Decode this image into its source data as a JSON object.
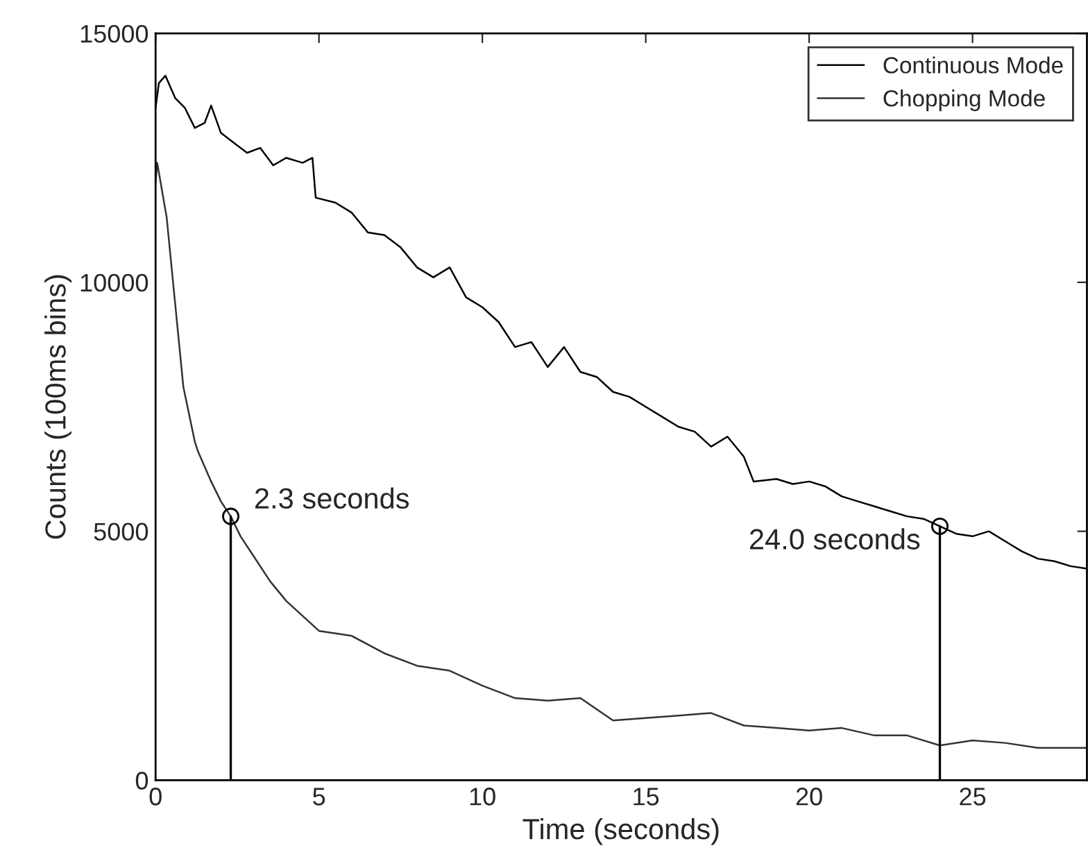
{
  "chart_data": {
    "type": "line",
    "xlabel": "Time (seconds)",
    "ylabel": "Counts (100ms bins)",
    "xlim": [
      0,
      28.5
    ],
    "xticks": [
      0,
      5,
      10,
      15,
      20,
      25
    ],
    "ylim": [
      0,
      15000
    ],
    "yticks": [
      0,
      5000,
      10000,
      15000
    ],
    "grid": false,
    "legend": "top right",
    "line_style": "solid",
    "marker": "none",
    "series": [
      {
        "name": "Continuous Mode",
        "color": "#000000",
        "x": [
          0,
          0.1,
          0.3,
          0.6,
          0.9,
          1.2,
          1.5,
          1.7,
          2.0,
          2.4,
          2.8,
          3.2,
          3.6,
          4.0,
          4.5,
          4.8,
          4.9,
          5.5,
          6.0,
          6.5,
          7.0,
          7.5,
          8.0,
          8.5,
          9.0,
          9.5,
          10.0,
          10.5,
          11.0,
          11.5,
          12.0,
          12.5,
          13.0,
          13.5,
          14.0,
          14.5,
          15.0,
          15.5,
          16.0,
          16.5,
          17.0,
          17.5,
          18.0,
          18.3,
          19.0,
          19.5,
          20.0,
          20.5,
          21.0,
          21.5,
          22.0,
          22.5,
          23.0,
          23.5,
          24.0,
          24.5,
          25.0,
          25.5,
          26.0,
          26.5,
          27.0,
          27.5,
          28.0,
          28.5
        ],
        "values": [
          13500,
          14000,
          14150,
          13700,
          13500,
          13100,
          13200,
          13550,
          13000,
          12800,
          12600,
          12700,
          12350,
          12500,
          12400,
          12500,
          11700,
          11600,
          11400,
          11000,
          10950,
          10700,
          10300,
          10100,
          10300,
          9700,
          9500,
          9200,
          8700,
          8800,
          8300,
          8700,
          8200,
          8100,
          7800,
          7700,
          7500,
          7300,
          7100,
          7000,
          6700,
          6900,
          6500,
          6000,
          6050,
          5950,
          6000,
          5900,
          5700,
          5600,
          5500,
          5400,
          5300,
          5250,
          5100,
          4950,
          4900,
          5000,
          4800,
          4600,
          4450,
          4400,
          4300,
          4250
        ]
      },
      {
        "name": "Chopping Mode",
        "color": "#333333",
        "x": [
          0,
          0.05,
          0.34,
          0.85,
          1.2,
          1.3,
          1.7,
          2.0,
          2.3,
          2.6,
          3.0,
          3.5,
          4.0,
          4.5,
          5.0,
          6.0,
          7.0,
          8.0,
          9.0,
          10.0,
          11.0,
          12.0,
          13.0,
          14.0,
          15.0,
          16.0,
          17.0,
          18.0,
          19.0,
          20.0,
          21.0,
          22.0,
          23.0,
          24.0,
          25.0,
          26.0,
          27.0,
          28.0,
          28.5
        ],
        "values": [
          12000,
          12400,
          11300,
          7900,
          6800,
          6600,
          6000,
          5600,
          5300,
          4900,
          4500,
          4000,
          3600,
          3300,
          3000,
          2900,
          2550,
          2300,
          2200,
          1900,
          1650,
          1600,
          1650,
          1200,
          1250,
          1300,
          1350,
          1100,
          1050,
          1000,
          1050,
          900,
          900,
          700,
          800,
          750,
          650,
          650,
          650
        ]
      }
    ],
    "annotations": [
      {
        "text": "2.3 seconds",
        "x": 2.3,
        "y": 5300
      },
      {
        "text": "24.0 seconds",
        "x": 24.0,
        "y": 5100
      }
    ]
  }
}
